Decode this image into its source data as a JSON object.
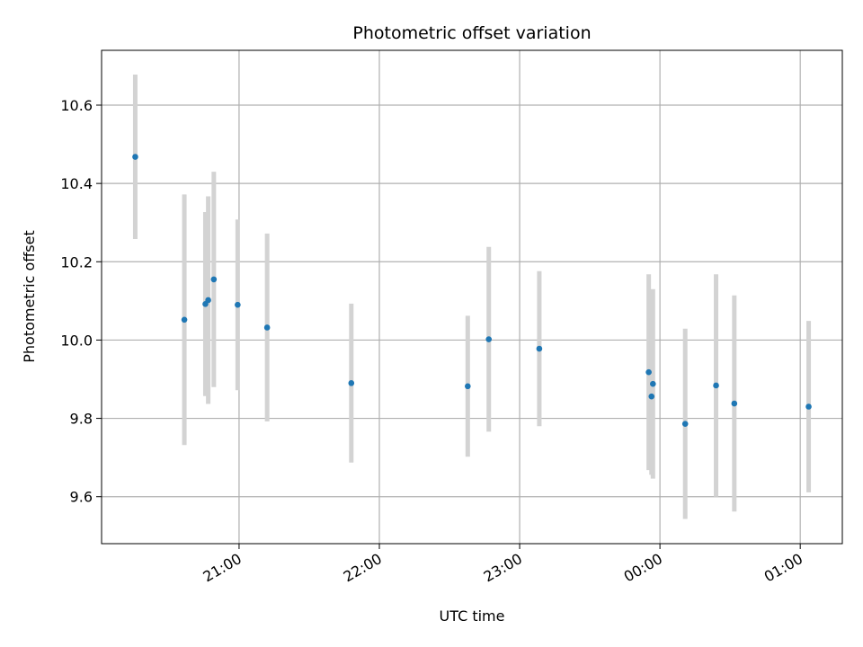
{
  "chart_data": {
    "type": "scatter",
    "title": "Photometric offset variation",
    "xlabel": "UTC time",
    "ylabel": "Photometric offset",
    "grid": true,
    "x_axis": {
      "unit": "hours since 20:00 UTC (wraps past midnight)",
      "xlim": [
        0.02,
        5.3
      ],
      "ticks": [
        {
          "value": 1,
          "label": "21:00"
        },
        {
          "value": 2,
          "label": "22:00"
        },
        {
          "value": 3,
          "label": "23:00"
        },
        {
          "value": 4,
          "label": "00:00"
        },
        {
          "value": 5,
          "label": "01:00"
        }
      ]
    },
    "y_axis": {
      "ylim": [
        9.48,
        10.74
      ],
      "ticks": [
        {
          "value": 9.6,
          "label": "9.6"
        },
        {
          "value": 9.8,
          "label": "9.8"
        },
        {
          "value": 10.0,
          "label": "10.0"
        },
        {
          "value": 10.2,
          "label": "10.2"
        },
        {
          "value": 10.4,
          "label": "10.4"
        },
        {
          "value": 10.6,
          "label": "10.6"
        }
      ]
    },
    "colors": {
      "point": "#1f77b4",
      "errorbar": "#d3d3d3",
      "grid": "#b0b0b0"
    },
    "points": [
      {
        "x": 0.26,
        "y": 10.468,
        "err": 0.21
      },
      {
        "x": 0.61,
        "y": 10.052,
        "err": 0.32
      },
      {
        "x": 0.76,
        "y": 10.092,
        "err": 0.235
      },
      {
        "x": 0.78,
        "y": 10.102,
        "err": 0.265
      },
      {
        "x": 0.82,
        "y": 10.155,
        "err": 0.275
      },
      {
        "x": 0.99,
        "y": 10.09,
        "err": 0.218
      },
      {
        "x": 1.2,
        "y": 10.032,
        "err": 0.24
      },
      {
        "x": 1.8,
        "y": 9.89,
        "err": 0.203
      },
      {
        "x": 2.63,
        "y": 9.882,
        "err": 0.18
      },
      {
        "x": 2.78,
        "y": 10.002,
        "err": 0.236
      },
      {
        "x": 3.14,
        "y": 9.978,
        "err": 0.198
      },
      {
        "x": 3.92,
        "y": 9.918,
        "err": 0.25
      },
      {
        "x": 3.94,
        "y": 9.856,
        "err": 0.2
      },
      {
        "x": 3.95,
        "y": 9.888,
        "err": 0.242
      },
      {
        "x": 4.18,
        "y": 9.786,
        "err": 0.243
      },
      {
        "x": 4.4,
        "y": 9.884,
        "err": 0.284
      },
      {
        "x": 4.53,
        "y": 9.838,
        "err": 0.276
      },
      {
        "x": 5.06,
        "y": 9.83,
        "err": 0.219
      }
    ]
  }
}
